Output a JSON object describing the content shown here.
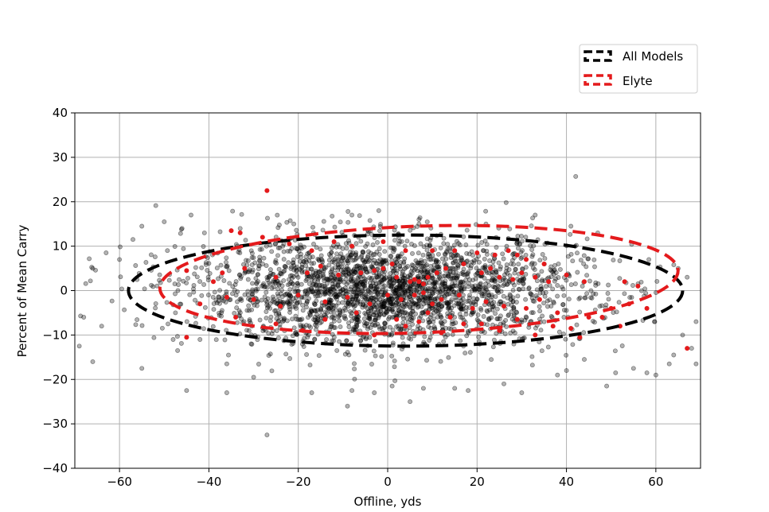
{
  "chart_data": {
    "type": "scatter",
    "title": "",
    "xlabel": "Offline, yds",
    "ylabel": "Percent of Mean Carry",
    "xlim": [
      -70,
      70
    ],
    "ylim": [
      -40,
      40
    ],
    "xticks": [
      -60,
      -40,
      -20,
      0,
      20,
      40,
      60
    ],
    "yticks": [
      -40,
      -30,
      -20,
      -10,
      0,
      10,
      20,
      30,
      40
    ],
    "xtick_labels": [
      "−60",
      "−40",
      "−20",
      "0",
      "20",
      "40",
      "60"
    ],
    "ytick_labels": [
      "−40",
      "−30",
      "−20",
      "−10",
      "0",
      "10",
      "20",
      "30",
      "40"
    ],
    "grid": true,
    "legend_placement": "top-right, outside plot area",
    "colors": {
      "all": "#000000",
      "elyte": "#e41a1c",
      "grid": "#b0b0b0"
    },
    "series": [
      {
        "name": "All Models",
        "kind": "scatter",
        "color": "#000000",
        "alpha": 0.3,
        "x_mean": 0,
        "x_sd": 22,
        "y_mean": 0,
        "y_sd": 6,
        "approx_count": 2600,
        "outliers": [
          [
            -27,
            -32.5
          ],
          [
            -9,
            -26
          ],
          [
            -45,
            -22.5
          ],
          [
            -36,
            -23
          ],
          [
            -69,
            -12.5
          ],
          [
            -66,
            -16
          ],
          [
            -55,
            -17.5
          ],
          [
            -48,
            -11
          ],
          [
            -47,
            -13.5
          ],
          [
            -42,
            -11
          ],
          [
            -36,
            -16.5
          ],
          [
            -30,
            -19.5
          ],
          [
            -17,
            -23
          ],
          [
            -8,
            -22.5
          ],
          [
            -3,
            -23
          ],
          [
            1,
            -21.5
          ],
          [
            5,
            -25
          ],
          [
            8,
            -22
          ],
          [
            15,
            -22
          ],
          [
            18,
            -22.5
          ],
          [
            26,
            -21
          ],
          [
            30,
            -23
          ],
          [
            38,
            -19
          ],
          [
            40,
            -18
          ],
          [
            44,
            -15.5
          ],
          [
            49,
            -21.5
          ],
          [
            51,
            -18.5
          ],
          [
            55,
            -17.5
          ],
          [
            58,
            -18.5
          ],
          [
            60,
            -19
          ],
          [
            63,
            -16.5
          ],
          [
            64,
            -14.5
          ],
          [
            68,
            -13
          ],
          [
            69,
            -16.5
          ],
          [
            -63,
            8.5
          ],
          [
            -57,
            11.5
          ],
          [
            -55,
            14.5
          ],
          [
            -50,
            15.5
          ],
          [
            -46,
            14
          ],
          [
            -44,
            17
          ],
          [
            -41,
            13
          ],
          [
            -33,
            14
          ],
          [
            -21,
            15
          ],
          [
            -8,
            17
          ],
          [
            -2,
            18
          ],
          [
            7,
            16
          ],
          [
            22,
            15
          ],
          [
            33,
            17
          ],
          [
            41,
            14.5
          ],
          [
            47,
            13
          ],
          [
            -66,
            5
          ],
          [
            -68,
            -6
          ],
          [
            -64,
            -8
          ],
          [
            -60,
            7
          ],
          [
            65,
            5
          ],
          [
            67,
            3
          ],
          [
            69,
            -7
          ],
          [
            66,
            -10
          ]
        ]
      },
      {
        "name": "Elyte",
        "kind": "scatter",
        "color": "#e41a1c",
        "points": [
          [
            -27,
            22.5
          ],
          [
            -35,
            13.5
          ],
          [
            -33,
            13
          ],
          [
            -28,
            12
          ],
          [
            -22,
            10.5
          ],
          [
            -17,
            9
          ],
          [
            -12,
            11
          ],
          [
            -8,
            10
          ],
          [
            -1,
            11
          ],
          [
            4,
            9
          ],
          [
            10,
            9
          ],
          [
            15,
            9
          ],
          [
            20,
            8.5
          ],
          [
            24,
            8
          ],
          [
            27,
            9
          ],
          [
            29,
            8
          ],
          [
            31,
            7
          ],
          [
            35,
            6
          ],
          [
            -45,
            4.5
          ],
          [
            -39,
            2
          ],
          [
            -37,
            4
          ],
          [
            -32,
            5
          ],
          [
            -25,
            3
          ],
          [
            -18,
            4
          ],
          [
            -15,
            5.5
          ],
          [
            -11,
            3.5
          ],
          [
            -6,
            4
          ],
          [
            -3,
            4.5
          ],
          [
            -1,
            5
          ],
          [
            1,
            6
          ],
          [
            2,
            3
          ],
          [
            5,
            2
          ],
          [
            6,
            2.5
          ],
          [
            7,
            2
          ],
          [
            8,
            1.5
          ],
          [
            9,
            3
          ],
          [
            11,
            4
          ],
          [
            13,
            5
          ],
          [
            17,
            6
          ],
          [
            21,
            4
          ],
          [
            23,
            5
          ],
          [
            25,
            3
          ],
          [
            28,
            2.5
          ],
          [
            30,
            4
          ],
          [
            33,
            3
          ],
          [
            36,
            2
          ],
          [
            40,
            3.5
          ],
          [
            44,
            2
          ],
          [
            53,
            2
          ],
          [
            56,
            1
          ],
          [
            -42,
            -3
          ],
          [
            -36,
            -1.5
          ],
          [
            -30,
            -2
          ],
          [
            -24,
            -3.5
          ],
          [
            -20,
            -1
          ],
          [
            -14,
            -2.5
          ],
          [
            -9,
            -1.5
          ],
          [
            -4,
            -3
          ],
          [
            0,
            -1
          ],
          [
            3,
            -2
          ],
          [
            6,
            -1
          ],
          [
            8,
            -0.5
          ],
          [
            10,
            -3
          ],
          [
            12,
            -2
          ],
          [
            16,
            -1
          ],
          [
            19,
            -4
          ],
          [
            22,
            -2.5
          ],
          [
            26,
            -3.5
          ],
          [
            31,
            -4
          ],
          [
            34,
            -2
          ],
          [
            38,
            -5
          ],
          [
            45,
            -6
          ],
          [
            50,
            -4
          ],
          [
            54,
            -3
          ],
          [
            -34,
            -6
          ],
          [
            -25,
            -7.5
          ],
          [
            -14,
            -6.5
          ],
          [
            -7,
            -5
          ],
          [
            2,
            -6.5
          ],
          [
            9,
            -5
          ],
          [
            14,
            -6
          ],
          [
            21,
            -7.5
          ],
          [
            29,
            -6.5
          ],
          [
            37,
            -8
          ],
          [
            41,
            -8.5
          ],
          [
            48,
            -6
          ],
          [
            52,
            -8
          ],
          [
            -45,
            -10.5
          ],
          [
            -19,
            -9
          ],
          [
            -3,
            -10
          ],
          [
            4,
            -8
          ],
          [
            7,
            -7
          ],
          [
            12,
            -9.5
          ],
          [
            17,
            -7.5
          ],
          [
            25,
            -9
          ],
          [
            33,
            -10
          ],
          [
            43,
            -10.5
          ],
          [
            58,
            -4
          ],
          [
            67,
            -13
          ]
        ]
      },
      {
        "name": "All Models",
        "kind": "confidence-ellipse",
        "center": [
          4,
          0
        ],
        "half_width": 62,
        "half_height": 12.5,
        "tilt_deg": 0,
        "color": "#000000"
      },
      {
        "name": "Elyte",
        "kind": "confidence-ellipse",
        "center": [
          7,
          2.5
        ],
        "half_width": 58,
        "half_height": 12,
        "tilt_deg": 2,
        "color": "#e41a1c"
      }
    ],
    "legend": [
      {
        "label": "All Models",
        "color": "#000000"
      },
      {
        "label": "Elyte",
        "color": "#e41a1c"
      }
    ]
  }
}
